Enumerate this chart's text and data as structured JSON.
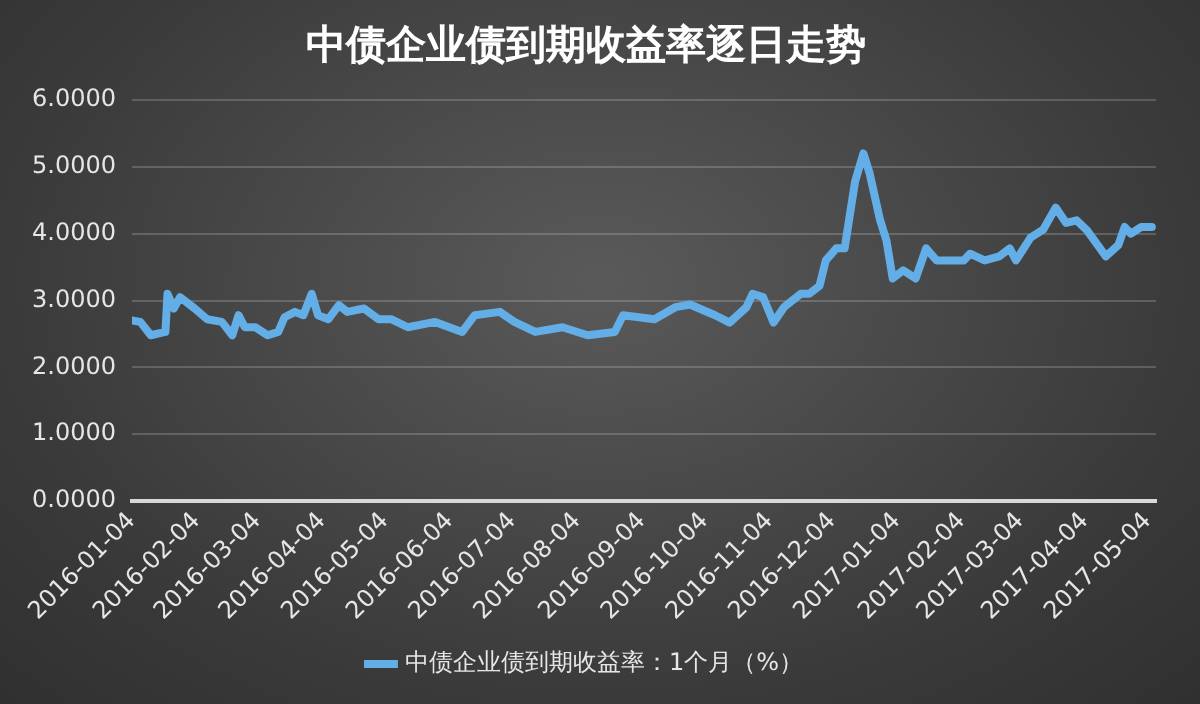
{
  "chart_data": {
    "type": "line",
    "title": "中债企业债到期收益率逐日走势",
    "x": [
      "2016-01-04",
      "2016-01-08",
      "2016-01-13",
      "2016-01-20",
      "2016-01-21",
      "2016-01-24",
      "2016-01-27",
      "2016-02-03",
      "2016-02-09",
      "2016-02-16",
      "2016-02-21",
      "2016-02-24",
      "2016-02-27",
      "2016-03-03",
      "2016-03-09",
      "2016-03-14",
      "2016-03-17",
      "2016-03-22",
      "2016-03-26",
      "2016-03-30",
      "2016-04-02",
      "2016-04-07",
      "2016-04-12",
      "2016-04-16",
      "2016-04-24",
      "2016-05-01",
      "2016-05-07",
      "2016-05-15",
      "2016-05-28",
      "2016-06-10",
      "2016-06-16",
      "2016-06-28",
      "2016-07-05",
      "2016-07-15",
      "2016-07-28",
      "2016-08-09",
      "2016-08-22",
      "2016-08-26",
      "2016-09-10",
      "2016-09-20",
      "2016-09-27",
      "2016-10-09",
      "2016-10-16",
      "2016-10-24",
      "2016-10-27",
      "2016-11-01",
      "2016-11-06",
      "2016-11-11",
      "2016-11-19",
      "2016-11-23",
      "2016-11-28",
      "2016-12-01",
      "2016-12-06",
      "2016-12-10",
      "2016-12-15",
      "2016-12-19",
      "2016-12-22",
      "2016-12-27",
      "2016-12-30",
      "2017-01-02",
      "2017-01-07",
      "2017-01-13",
      "2017-01-18",
      "2017-01-23",
      "2017-02-05",
      "2017-02-08",
      "2017-02-15",
      "2017-02-22",
      "2017-02-27",
      "2017-03-02",
      "2017-03-09",
      "2017-03-15",
      "2017-03-21",
      "2017-03-26",
      "2017-03-31",
      "2017-04-05",
      "2017-04-14",
      "2017-04-20",
      "2017-04-23",
      "2017-04-26",
      "2017-05-01",
      "2017-05-06"
    ],
    "series": [
      {
        "name": "中债企业债到期收益率：1个月（%）",
        "color": "#63aee6",
        "values": [
          2.7,
          2.68,
          2.48,
          2.53,
          3.1,
          2.88,
          3.05,
          2.88,
          2.72,
          2.68,
          2.48,
          2.78,
          2.6,
          2.6,
          2.48,
          2.53,
          2.75,
          2.83,
          2.78,
          3.1,
          2.78,
          2.72,
          2.93,
          2.83,
          2.88,
          2.72,
          2.72,
          2.6,
          2.68,
          2.53,
          2.78,
          2.83,
          2.68,
          2.53,
          2.6,
          2.48,
          2.53,
          2.78,
          2.72,
          2.9,
          2.94,
          2.78,
          2.67,
          2.9,
          3.1,
          3.05,
          2.67,
          2.9,
          3.1,
          3.1,
          3.22,
          3.6,
          3.78,
          3.78,
          4.78,
          5.2,
          4.9,
          4.2,
          3.9,
          3.33,
          3.45,
          3.33,
          3.78,
          3.6,
          3.6,
          3.7,
          3.6,
          3.66,
          3.78,
          3.6,
          3.94,
          4.06,
          4.39,
          4.16,
          4.2,
          4.05,
          3.66,
          3.83,
          4.1,
          4.0,
          4.1,
          4.1
        ]
      }
    ],
    "xlim": [
      "2016-01-04",
      "2017-05-08"
    ],
    "xticks": [
      "2016-01-04",
      "2016-02-04",
      "2016-03-04",
      "2016-04-04",
      "2016-05-04",
      "2016-06-04",
      "2016-07-04",
      "2016-08-04",
      "2016-09-04",
      "2016-10-04",
      "2016-11-04",
      "2016-12-04",
      "2017-01-04",
      "2017-02-04",
      "2017-03-04",
      "2017-04-04",
      "2017-05-04"
    ],
    "ylim": [
      0,
      6
    ],
    "yticks": [
      {
        "value": 0,
        "label": "0.0000"
      },
      {
        "value": 1,
        "label": "1.0000"
      },
      {
        "value": 2,
        "label": "2.0000"
      },
      {
        "value": 3,
        "label": "3.0000"
      },
      {
        "value": 4,
        "label": "4.0000"
      },
      {
        "value": 5,
        "label": "5.0000"
      },
      {
        "value": 6,
        "label": "6.0000"
      }
    ],
    "grid": "y",
    "legend": "bottom",
    "marker": "none",
    "line_style": "solid"
  }
}
